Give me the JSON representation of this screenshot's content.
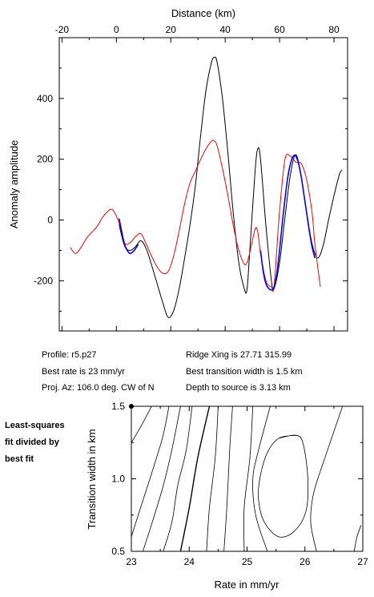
{
  "chart_data": [
    {
      "type": "line",
      "title": "",
      "xlabel": "Distance (km)",
      "ylabel": "Anomaly amplitude",
      "xlim": [
        -21,
        85
      ],
      "ylim": [
        -365,
        600
      ],
      "xticks": [
        -20,
        0,
        20,
        40,
        60,
        80
      ],
      "yticks": [
        -200,
        0,
        200,
        400
      ],
      "grid": false,
      "legend": "none",
      "series": [
        {
          "color": "#000000",
          "x": [
            1,
            3,
            5,
            7,
            9,
            11,
            13,
            15,
            17,
            19,
            21,
            23,
            25,
            27,
            29,
            31,
            33,
            35,
            36,
            37,
            39,
            41,
            43,
            45,
            47,
            48,
            49,
            51,
            52,
            53,
            55,
            57,
            58,
            60,
            62,
            64,
            66,
            68,
            70,
            72,
            74,
            76,
            78,
            80,
            82,
            83
          ],
          "y": [
            -15,
            -85,
            -100,
            -88,
            -68,
            -95,
            -150,
            -210,
            -270,
            -320,
            -300,
            -230,
            -130,
            -20,
            110,
            280,
            430,
            520,
            535,
            520,
            400,
            220,
            20,
            -140,
            -225,
            -230,
            -110,
            160,
            235,
            200,
            -20,
            -200,
            -225,
            -140,
            10,
            150,
            215,
            140,
            20,
            -80,
            -125,
            -85,
            0,
            80,
            150,
            165
          ]
        },
        {
          "color": "#ff0000",
          "x": [
            -17,
            -15,
            -13,
            -11,
            -9,
            -7,
            -5,
            -3,
            -2,
            -1,
            1,
            3,
            5,
            7,
            9,
            11,
            13,
            15,
            17,
            19,
            21,
            23,
            25,
            27,
            29,
            31,
            33,
            35,
            36,
            37,
            39,
            41,
            43,
            45,
            47,
            48,
            49,
            51,
            52,
            53,
            55,
            57,
            58,
            60,
            62,
            64,
            66,
            68,
            70,
            72,
            73,
            75
          ],
          "y": [
            -90,
            -110,
            -90,
            -60,
            -40,
            -20,
            10,
            30,
            35,
            30,
            -10,
            -75,
            -75,
            -55,
            -45,
            -80,
            -120,
            -155,
            -175,
            -170,
            -120,
            -40,
            50,
            120,
            160,
            200,
            235,
            260,
            260,
            245,
            170,
            80,
            -20,
            -100,
            -145,
            -140,
            -110,
            -30,
            -40,
            -110,
            -200,
            -220,
            -215,
            30,
            200,
            210,
            190,
            185,
            130,
            20,
            -80,
            -220
          ]
        },
        {
          "color": "#0000ff",
          "x": [
            1,
            2,
            3,
            4,
            5,
            6,
            7,
            8,
            53,
            54,
            55,
            56,
            57,
            58,
            59,
            60,
            61,
            62,
            63,
            64,
            65,
            66,
            67,
            68,
            69,
            70,
            71,
            72,
            73
          ],
          "y": [
            5,
            -40,
            -80,
            -100,
            -110,
            -105,
            -95,
            -80,
            -100,
            -170,
            -210,
            -225,
            -230,
            -220,
            -175,
            -100,
            -10,
            70,
            140,
            185,
            210,
            210,
            185,
            140,
            80,
            20,
            -40,
            -90,
            -125
          ]
        }
      ]
    },
    {
      "type": "contour",
      "title": "",
      "xlabel": "Rate in mm/yr",
      "ylabel": "Transition width in km",
      "xlim": [
        23,
        27
      ],
      "ylim": [
        0.5,
        1.5
      ],
      "xticks": [
        "23",
        "24",
        "25",
        "26",
        "27"
      ],
      "yticks": [
        "0.5",
        "1.0",
        "1.5"
      ],
      "best_fit_marker": {
        "rate": 23,
        "width": 1.5
      },
      "grid": false,
      "legend": "none",
      "contours": [
        {
          "level": 1.05,
          "points": [
            [
              23.0,
              1.25
            ],
            [
              23.15,
              1.35
            ],
            [
              23.35,
              1.5
            ]
          ]
        },
        {
          "level": 1.05,
          "points": [
            [
              23.0,
              0.6
            ],
            [
              23.2,
              0.85
            ],
            [
              23.4,
              1.1
            ],
            [
              23.55,
              1.3
            ],
            [
              23.65,
              1.5
            ]
          ]
        },
        {
          "level": 1.1,
          "points": [
            [
              23.2,
              0.5
            ],
            [
              23.4,
              0.75
            ],
            [
              23.55,
              0.95
            ],
            [
              23.7,
              1.2
            ],
            [
              23.85,
              1.5
            ]
          ]
        },
        {
          "level": 1.2,
          "points": [
            [
              23.55,
              0.5
            ],
            [
              23.7,
              0.7
            ],
            [
              23.8,
              0.95
            ],
            [
              23.95,
              1.2
            ],
            [
              24.05,
              1.5
            ]
          ]
        },
        {
          "level": 1.5,
          "points": [
            [
              23.85,
              0.5
            ],
            [
              24.0,
              0.8
            ],
            [
              24.15,
              1.15
            ],
            [
              24.35,
              1.5
            ]
          ]
        },
        {
          "level": 2.0,
          "points": [
            [
              24.3,
              0.5
            ],
            [
              24.35,
              0.8
            ],
            [
              24.45,
              1.15
            ],
            [
              24.5,
              1.5
            ]
          ]
        },
        {
          "level": 3.0,
          "points": [
            [
              24.6,
              0.5
            ],
            [
              24.65,
              0.8
            ],
            [
              24.7,
              1.2
            ],
            [
              24.75,
              1.5
            ]
          ]
        },
        {
          "level": 4.0,
          "points": [
            [
              24.95,
              0.5
            ],
            [
              24.95,
              0.8
            ],
            [
              25.05,
              1.15
            ],
            [
              25.1,
              1.5
            ]
          ]
        },
        {
          "level": 6.0,
          "points": [
            [
              25.35,
              0.5
            ],
            [
              25.15,
              0.75
            ],
            [
              25.1,
              1.0
            ],
            [
              25.2,
              1.2
            ],
            [
              25.4,
              1.5
            ]
          ]
        },
        {
          "level": 8.0,
          "points": [
            [
              26.2,
              0.5
            ],
            [
              26.1,
              0.7
            ],
            [
              26.15,
              0.9
            ],
            [
              26.35,
              1.15
            ],
            [
              26.65,
              1.5
            ]
          ]
        },
        {
          "level": 10.0,
          "points": [
            [
              26.85,
              0.5
            ],
            [
              26.9,
              0.6
            ],
            [
              26.97,
              0.68
            ]
          ]
        },
        {
          "level": 5.0,
          "closed": true,
          "points": [
            [
              25.55,
              1.28
            ],
            [
              25.85,
              1.3
            ],
            [
              25.97,
              1.24
            ],
            [
              26.05,
              1.0
            ],
            [
              26.02,
              0.78
            ],
            [
              25.82,
              0.64
            ],
            [
              25.55,
              0.6
            ],
            [
              25.3,
              0.7
            ],
            [
              25.2,
              0.85
            ],
            [
              25.22,
              1.0
            ],
            [
              25.35,
              1.18
            ]
          ]
        }
      ]
    }
  ],
  "info": {
    "profile": "Profile: r5.p27",
    "best_rate": "Best rate is 23 mm/yr",
    "proj_az": "Proj. Az: 106.0 deg. CW of N",
    "ridge_xing": "Ridge Xing is 27.71 315.99",
    "best_width": "Best transition width is 1.5 km",
    "depth": "Depth to source is   3.13 km"
  },
  "side_note": [
    "Least-squares",
    "fit divided by",
    "best fit"
  ]
}
